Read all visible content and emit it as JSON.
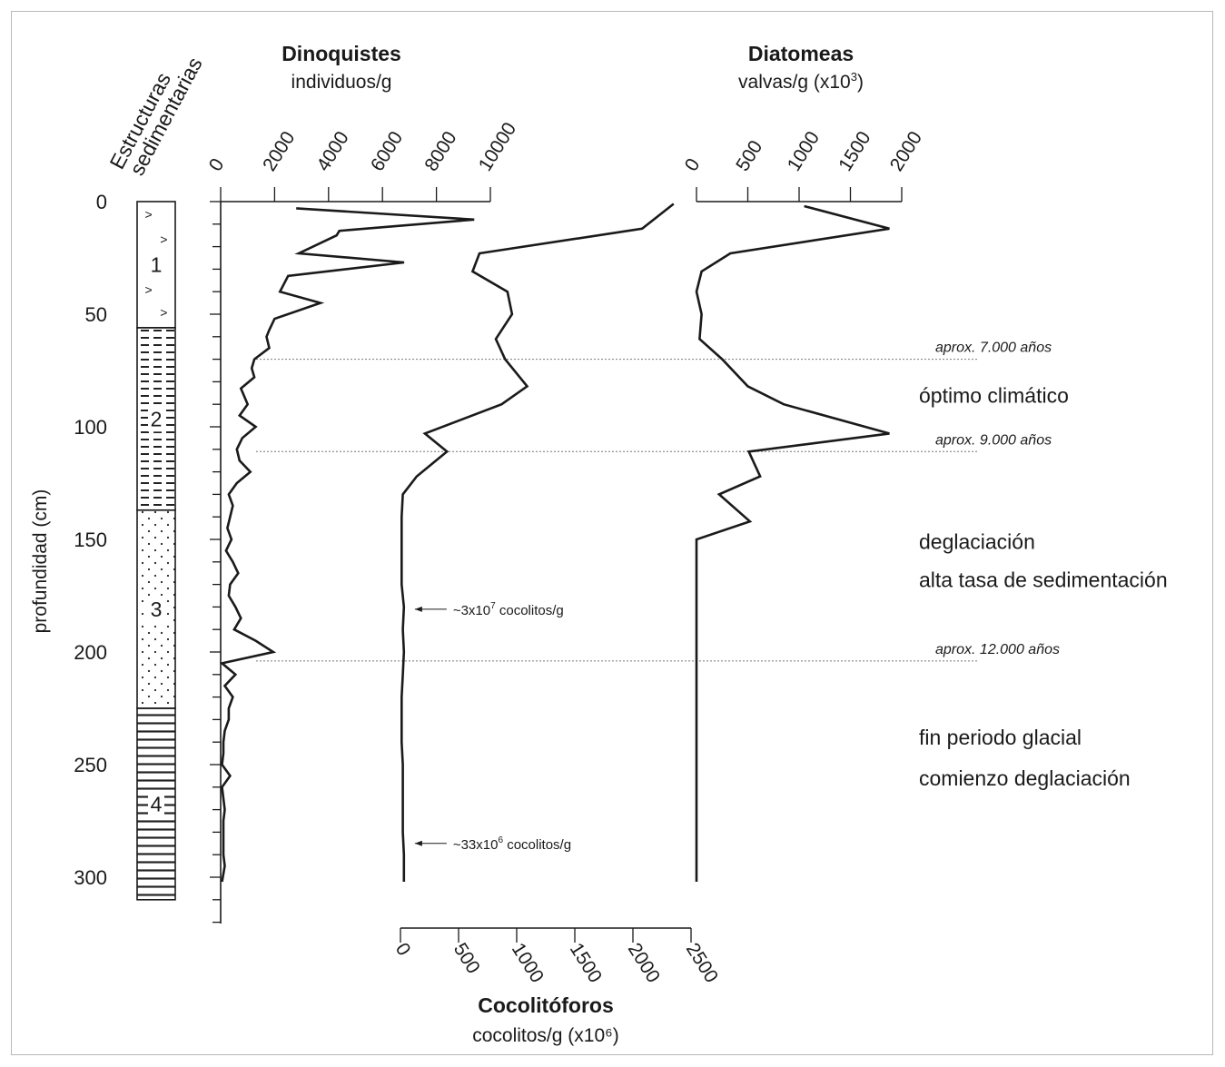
{
  "chart_data": {
    "type": "line",
    "orientation": "depth-profile",
    "depth_axis": {
      "label": "profundidad (cm)",
      "range": [
        0,
        310
      ],
      "ticks": [
        0,
        50,
        100,
        150,
        200,
        250,
        300
      ],
      "minor_step": 10
    },
    "strat_column": {
      "label_line1": "Estructuras",
      "label_line2": "sedimentarias",
      "units": [
        {
          "id": "1",
          "top": 0,
          "bottom": 56,
          "pattern": "marks"
        },
        {
          "id": "2",
          "top": 56,
          "bottom": 137,
          "pattern": "dashes"
        },
        {
          "id": "3",
          "top": 137,
          "bottom": 225,
          "pattern": "dots"
        },
        {
          "id": "4",
          "top": 225,
          "bottom": 310,
          "pattern": "lines"
        }
      ]
    },
    "series": [
      {
        "name": "Dinoquistes",
        "unit": "individuos/g",
        "range": [
          0,
          10000
        ],
        "ticks": [
          "0",
          "2000",
          "4000",
          "6000",
          "8000",
          "10000"
        ],
        "depth": [
          3,
          8,
          13,
          15,
          23,
          27,
          33,
          40,
          45,
          52,
          57,
          60,
          65,
          70,
          74,
          78,
          83,
          90,
          95,
          100,
          105,
          110,
          115,
          120,
          125,
          130,
          135,
          140,
          145,
          150,
          155,
          160,
          165,
          170,
          175,
          180,
          185,
          190,
          195,
          200,
          205,
          210,
          215,
          220,
          225,
          230,
          235,
          240,
          245,
          250,
          255,
          260,
          265,
          270,
          275,
          280,
          285,
          290,
          295,
          302
        ],
        "values": [
          2800,
          9400,
          4400,
          4300,
          2900,
          6800,
          2500,
          2200,
          3700,
          2000,
          1800,
          1700,
          1800,
          1250,
          1150,
          1250,
          750,
          1000,
          700,
          1300,
          800,
          600,
          700,
          1100,
          600,
          300,
          450,
          350,
          250,
          400,
          200,
          450,
          650,
          350,
          300,
          550,
          750,
          500,
          1300,
          1950,
          50,
          550,
          150,
          450,
          300,
          300,
          150,
          100,
          100,
          50,
          350,
          50,
          100,
          150,
          100,
          100,
          100,
          100,
          150,
          50
        ]
      },
      {
        "name": "Cocolitóforos",
        "unit": "cocolitos/g (x10⁶)",
        "range": [
          0,
          2500
        ],
        "ticks": [
          "0",
          "500",
          "1000",
          "1500",
          "2000",
          "2500"
        ],
        "depth": [
          1,
          12,
          23,
          31,
          40,
          50,
          61,
          70,
          82,
          90,
          103,
          111,
          122,
          130,
          140,
          150,
          160,
          170,
          180,
          190,
          200,
          210,
          220,
          230,
          240,
          250,
          260,
          270,
          280,
          290,
          302
        ],
        "values": [
          2350,
          2080,
          680,
          620,
          920,
          960,
          820,
          900,
          1090,
          870,
          210,
          400,
          140,
          20,
          10,
          10,
          10,
          10,
          30,
          20,
          30,
          20,
          10,
          10,
          10,
          20,
          20,
          20,
          20,
          30,
          30
        ]
      },
      {
        "name": "Diatomeas",
        "unit_prefix": "valvas/g (x10",
        "unit_sup": "3",
        "unit_suffix": ")",
        "range": [
          0,
          2000
        ],
        "ticks": [
          "0",
          "500",
          "1000",
          "1500",
          "2000"
        ],
        "depth": [
          2,
          12,
          23,
          31,
          40,
          50,
          61,
          70,
          82,
          90,
          103,
          111,
          122,
          130,
          142,
          150,
          155,
          200,
          250,
          302
        ],
        "values": [
          1050,
          1880,
          330,
          50,
          0,
          50,
          30,
          250,
          500,
          850,
          1880,
          510,
          620,
          220,
          520,
          0,
          0,
          0,
          0,
          0
        ]
      }
    ],
    "age_markers": [
      {
        "depth": 70,
        "label": "aprox. 7.000 años"
      },
      {
        "depth": 111,
        "label": "aprox. 9.000 años"
      },
      {
        "depth": 204,
        "label": "aprox. 12.000 años"
      }
    ],
    "zones": [
      {
        "text": "óptimo climático",
        "depth": 86
      },
      {
        "text": "deglaciación",
        "depth": 151
      },
      {
        "text": "alta tasa de sedimentación",
        "depth": 168
      },
      {
        "text": "fin periodo glacial",
        "depth": 238
      },
      {
        "text": "comienzo deglaciación",
        "depth": 256
      }
    ],
    "annotations": [
      {
        "prefix": "~3x10",
        "sup": "7",
        "suffix": " cocolitos/g",
        "depth": 181,
        "series_value": 30
      },
      {
        "prefix": "~33x10",
        "sup": "6",
        "suffix": " cocolitos/g",
        "depth": 285,
        "series_value": 30
      }
    ],
    "grid": false
  }
}
